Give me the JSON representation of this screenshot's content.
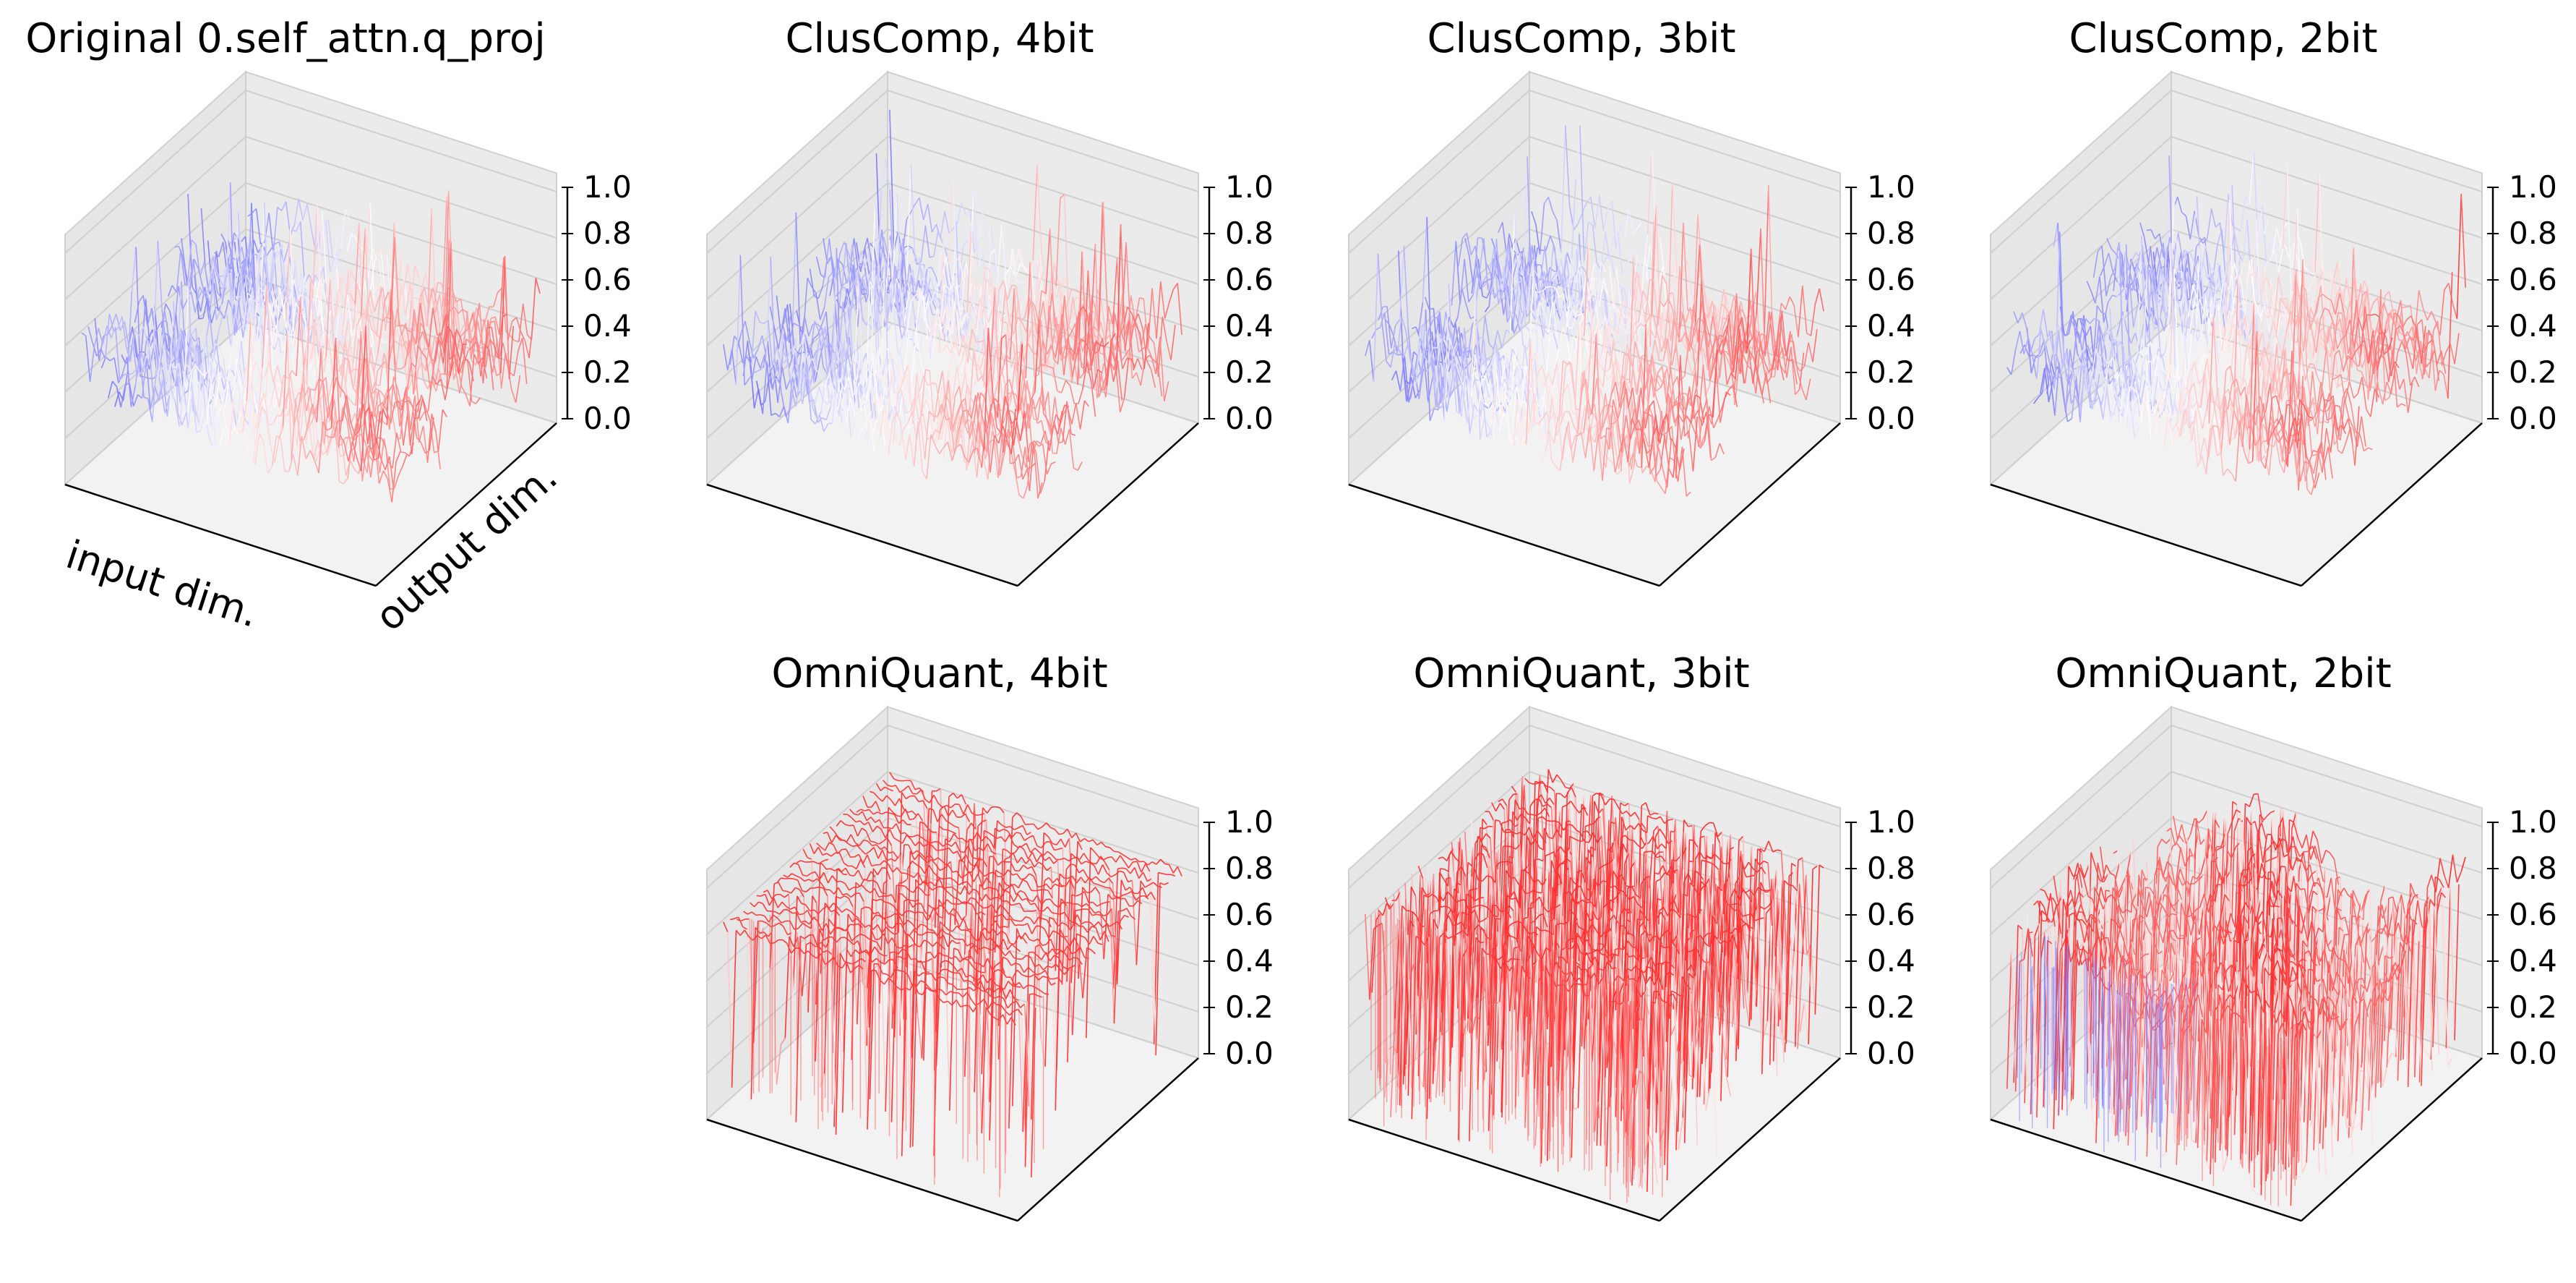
{
  "chart_data": [
    {
      "type": "surface3d",
      "title": "Original 0.self_attn.q_proj",
      "method": "Original",
      "xlabel": "input dim.",
      "ylabel": "output dim.",
      "zlim": [
        0.0,
        1.0
      ],
      "zticks": [
        "0.0",
        "0.2",
        "0.4",
        "0.6",
        "0.8",
        "1.0"
      ],
      "colormap": "bwr",
      "surface": {
        "base": 0.45,
        "amplitude": 0.35,
        "spike": 0.45,
        "noise": "medium",
        "profile": "smooth"
      }
    },
    {
      "type": "surface3d",
      "title": "ClusComp, 4bit",
      "method": "ClusComp",
      "bits": 4,
      "zlim": [
        0.0,
        1.0
      ],
      "zticks": [
        "0.0",
        "0.2",
        "0.4",
        "0.6",
        "0.8",
        "1.0"
      ],
      "colormap": "bwr",
      "surface": {
        "base": 0.45,
        "amplitude": 0.35,
        "spike": 0.45,
        "noise": "medium",
        "profile": "smooth"
      }
    },
    {
      "type": "surface3d",
      "title": "ClusComp, 3bit",
      "method": "ClusComp",
      "bits": 3,
      "zlim": [
        0.0,
        1.0
      ],
      "zticks": [
        "0.0",
        "0.2",
        "0.4",
        "0.6",
        "0.8",
        "1.0"
      ],
      "colormap": "bwr",
      "surface": {
        "base": 0.45,
        "amplitude": 0.35,
        "spike": 0.45,
        "noise": "medium",
        "profile": "smooth"
      }
    },
    {
      "type": "surface3d",
      "title": "ClusComp, 2bit",
      "method": "ClusComp",
      "bits": 2,
      "zlim": [
        0.0,
        1.0
      ],
      "zticks": [
        "0.0",
        "0.2",
        "0.4",
        "0.6",
        "0.8",
        "1.0"
      ],
      "colormap": "bwr",
      "surface": {
        "base": 0.45,
        "amplitude": 0.35,
        "spike": 0.45,
        "noise": "medium",
        "profile": "smooth"
      }
    },
    {
      "type": "surface3d",
      "title": "OmniQuant, 4bit",
      "method": "OmniQuant",
      "bits": 4,
      "zlim": [
        0.0,
        1.0
      ],
      "zticks": [
        "0.0",
        "0.2",
        "0.4",
        "0.6",
        "0.8",
        "1.0"
      ],
      "colormap": "bwr",
      "surface": {
        "base": 0.82,
        "amplitude": 0.05,
        "spike": 0.0,
        "noise": "drops",
        "profile": "plateau"
      }
    },
    {
      "type": "surface3d",
      "title": "OmniQuant, 3bit",
      "method": "OmniQuant",
      "bits": 3,
      "zlim": [
        0.0,
        1.0
      ],
      "zticks": [
        "0.0",
        "0.2",
        "0.4",
        "0.6",
        "0.8",
        "1.0"
      ],
      "colormap": "bwr",
      "surface": {
        "base": 0.85,
        "amplitude": 0.06,
        "spike": 0.0,
        "noise": "curtain",
        "profile": "plateau"
      }
    },
    {
      "type": "surface3d",
      "title": "OmniQuant, 2bit",
      "method": "OmniQuant",
      "bits": 2,
      "zlim": [
        0.0,
        1.0
      ],
      "zticks": [
        "0.0",
        "0.2",
        "0.4",
        "0.6",
        "0.8",
        "1.0"
      ],
      "colormap": "bwr",
      "surface": {
        "base": 0.7,
        "amplitude": 0.2,
        "spike": 0.0,
        "noise": "curtain",
        "profile": "mixed"
      }
    }
  ]
}
